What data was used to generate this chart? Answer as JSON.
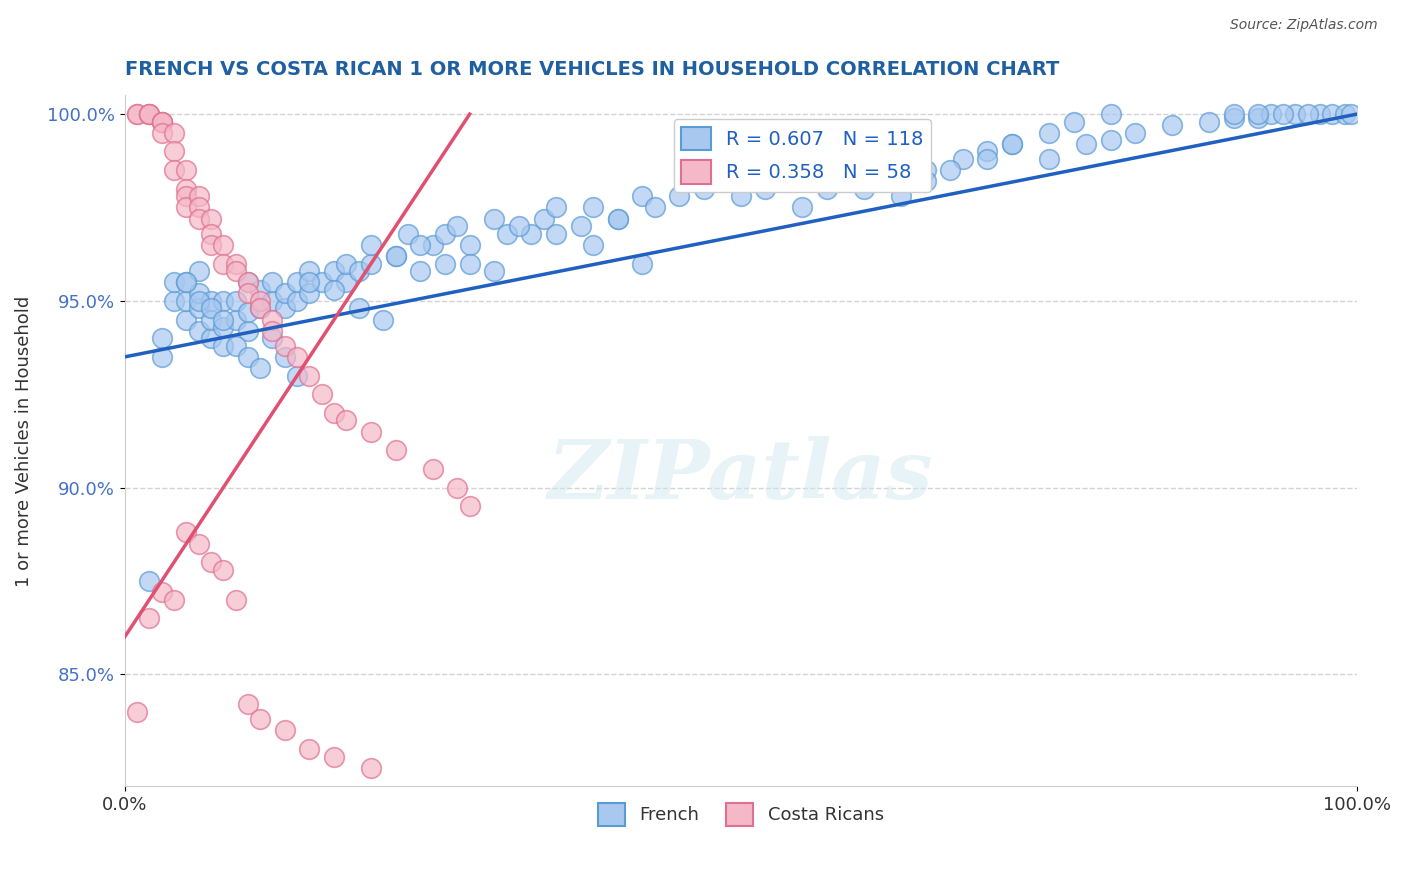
{
  "title": "FRENCH VS COSTA RICAN 1 OR MORE VEHICLES IN HOUSEHOLD CORRELATION CHART",
  "source_text": "Source: ZipAtlas.com",
  "xlabel_bottom": "French",
  "ylabel": "1 or more Vehicles in Household",
  "watermark": "ZIPatlas",
  "xlim": [
    0.0,
    1.0
  ],
  "ylim": [
    0.82,
    1.005
  ],
  "x_ticks": [
    0.0,
    1.0
  ],
  "x_tick_labels": [
    "0.0%",
    "100.0%"
  ],
  "y_ticks": [
    0.85,
    0.9,
    0.95,
    1.0
  ],
  "y_tick_labels": [
    "85.0%",
    "90.0%",
    "95.0%",
    "100.0%"
  ],
  "blue_R": 0.607,
  "blue_N": 118,
  "pink_R": 0.358,
  "pink_N": 58,
  "blue_color": "#a8c8f0",
  "blue_edge_color": "#5b9bd5",
  "pink_color": "#f4b8c8",
  "pink_edge_color": "#e07090",
  "blue_line_color": "#2060c0",
  "pink_line_color": "#e05070",
  "legend_blue_face": "#a8c8f0",
  "legend_blue_edge": "#5b9bd5",
  "legend_pink_face": "#f4b8c8",
  "legend_pink_edge": "#e07090",
  "blue_scatter_x": [
    0.02,
    0.03,
    0.03,
    0.04,
    0.04,
    0.05,
    0.05,
    0.05,
    0.06,
    0.06,
    0.06,
    0.06,
    0.07,
    0.07,
    0.07,
    0.08,
    0.08,
    0.08,
    0.09,
    0.09,
    0.1,
    0.1,
    0.1,
    0.11,
    0.11,
    0.12,
    0.12,
    0.13,
    0.13,
    0.14,
    0.14,
    0.15,
    0.15,
    0.16,
    0.17,
    0.18,
    0.18,
    0.19,
    0.2,
    0.2,
    0.22,
    0.23,
    0.24,
    0.25,
    0.26,
    0.27,
    0.28,
    0.3,
    0.31,
    0.33,
    0.34,
    0.35,
    0.37,
    0.38,
    0.4,
    0.42,
    0.43,
    0.45,
    0.47,
    0.48,
    0.5,
    0.52,
    0.55,
    0.57,
    0.6,
    0.62,
    0.65,
    0.68,
    0.7,
    0.72,
    0.75,
    0.78,
    0.8,
    0.82,
    0.85,
    0.88,
    0.9,
    0.92,
    0.93,
    0.95,
    0.97,
    0.98,
    0.99,
    0.995,
    0.38,
    0.4,
    0.42,
    0.28,
    0.3,
    0.32,
    0.35,
    0.15,
    0.17,
    0.19,
    0.21,
    0.05,
    0.06,
    0.07,
    0.08,
    0.09,
    0.1,
    0.11,
    0.12,
    0.13,
    0.14,
    0.22,
    0.24,
    0.26,
    0.55,
    0.6,
    0.63,
    0.65,
    0.67,
    0.7,
    0.72,
    0.75,
    0.77,
    0.8,
    0.9,
    0.92,
    0.94,
    0.96
  ],
  "blue_scatter_y": [
    0.875,
    0.935,
    0.94,
    0.95,
    0.955,
    0.945,
    0.95,
    0.955,
    0.942,
    0.948,
    0.952,
    0.958,
    0.94,
    0.945,
    0.95,
    0.938,
    0.943,
    0.95,
    0.945,
    0.95,
    0.942,
    0.947,
    0.955,
    0.948,
    0.953,
    0.95,
    0.955,
    0.948,
    0.952,
    0.95,
    0.955,
    0.952,
    0.958,
    0.955,
    0.958,
    0.955,
    0.96,
    0.958,
    0.96,
    0.965,
    0.962,
    0.968,
    0.958,
    0.965,
    0.968,
    0.97,
    0.965,
    0.972,
    0.968,
    0.968,
    0.972,
    0.975,
    0.97,
    0.975,
    0.972,
    0.978,
    0.975,
    0.978,
    0.98,
    0.982,
    0.978,
    0.98,
    0.985,
    0.98,
    0.985,
    0.988,
    0.985,
    0.988,
    0.99,
    0.992,
    0.988,
    0.992,
    0.993,
    0.995,
    0.997,
    0.998,
    0.999,
    0.999,
    1.0,
    1.0,
    1.0,
    1.0,
    1.0,
    1.0,
    0.965,
    0.972,
    0.96,
    0.96,
    0.958,
    0.97,
    0.968,
    0.955,
    0.953,
    0.948,
    0.945,
    0.955,
    0.95,
    0.948,
    0.945,
    0.938,
    0.935,
    0.932,
    0.94,
    0.935,
    0.93,
    0.962,
    0.965,
    0.96,
    0.975,
    0.98,
    0.978,
    0.982,
    0.985,
    0.988,
    0.992,
    0.995,
    0.998,
    1.0,
    1.0,
    1.0,
    1.0,
    1.0
  ],
  "pink_scatter_x": [
    0.01,
    0.01,
    0.02,
    0.02,
    0.02,
    0.03,
    0.03,
    0.03,
    0.03,
    0.04,
    0.04,
    0.04,
    0.05,
    0.05,
    0.05,
    0.05,
    0.06,
    0.06,
    0.06,
    0.07,
    0.07,
    0.07,
    0.08,
    0.08,
    0.09,
    0.09,
    0.1,
    0.1,
    0.11,
    0.11,
    0.12,
    0.12,
    0.13,
    0.14,
    0.15,
    0.16,
    0.17,
    0.18,
    0.2,
    0.22,
    0.25,
    0.27,
    0.28,
    0.05,
    0.06,
    0.07,
    0.08,
    0.03,
    0.04,
    0.09,
    0.02,
    0.01,
    0.1,
    0.11,
    0.13,
    0.15,
    0.17,
    0.2
  ],
  "pink_scatter_y": [
    1.0,
    1.0,
    1.0,
    1.0,
    1.0,
    0.998,
    0.998,
    0.998,
    0.995,
    0.995,
    0.99,
    0.985,
    0.985,
    0.98,
    0.978,
    0.975,
    0.978,
    0.975,
    0.972,
    0.972,
    0.968,
    0.965,
    0.965,
    0.96,
    0.96,
    0.958,
    0.955,
    0.952,
    0.95,
    0.948,
    0.945,
    0.942,
    0.938,
    0.935,
    0.93,
    0.925,
    0.92,
    0.918,
    0.915,
    0.91,
    0.905,
    0.9,
    0.895,
    0.888,
    0.885,
    0.88,
    0.878,
    0.872,
    0.87,
    0.87,
    0.865,
    0.84,
    0.842,
    0.838,
    0.835,
    0.83,
    0.828,
    0.825
  ],
  "blue_line_x": [
    0.0,
    1.0
  ],
  "blue_line_y_start": 0.935,
  "blue_line_y_end": 1.0,
  "pink_line_x": [
    0.0,
    0.28
  ],
  "pink_line_y_start": 0.86,
  "pink_line_y_end": 1.0
}
